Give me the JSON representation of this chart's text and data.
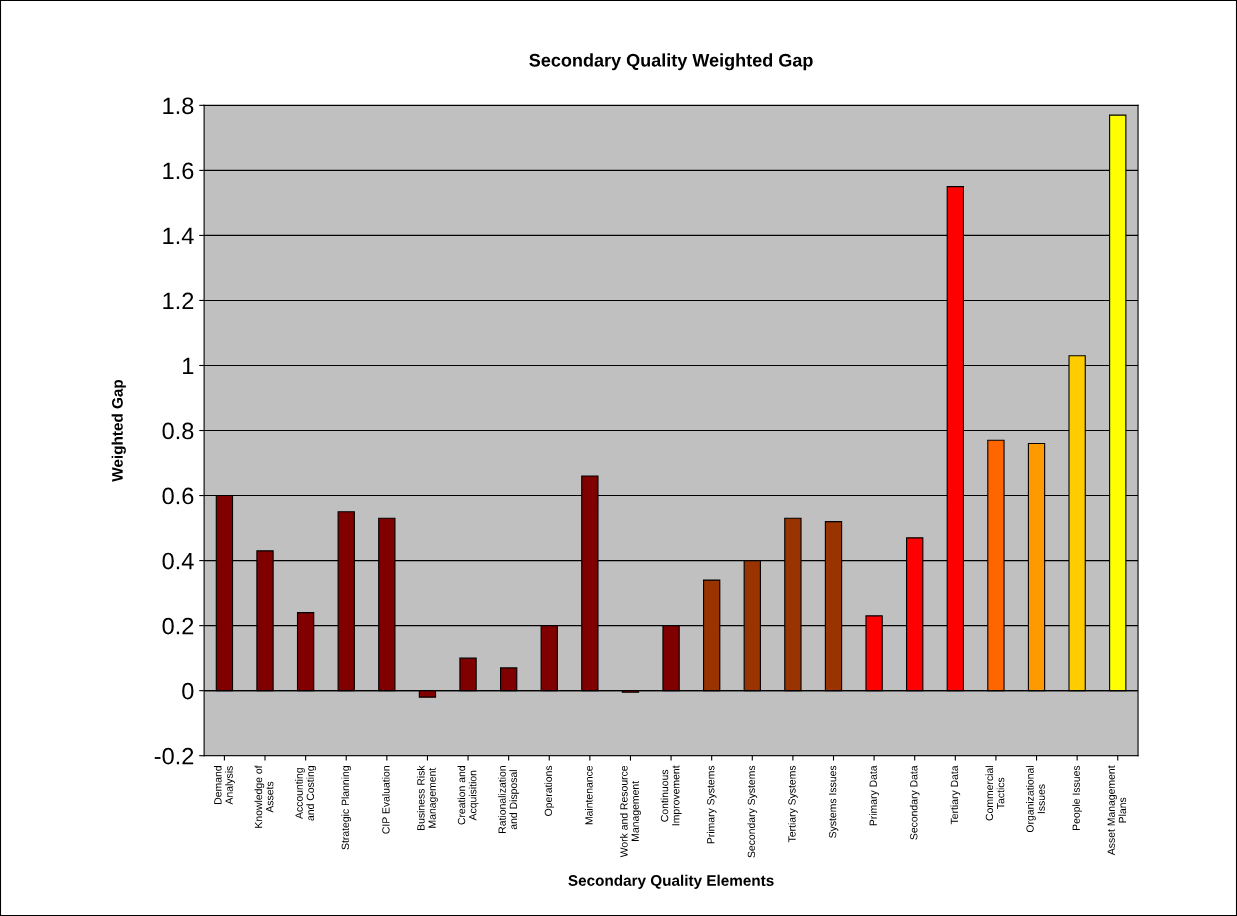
{
  "chart_data": {
    "type": "bar",
    "title": "Secondary Quality Weighted Gap",
    "xlabel": "Secondary Quality Elements",
    "ylabel": "Weighted Gap",
    "categories": [
      "Demand\nAnalysis",
      "Knowledge of\nAssets",
      "Accounting\nand Costing",
      "Strategic Planning",
      "CIP Evaluation",
      "Business Risk\nManagement",
      "Creation and\nAcquisition",
      "Rationalization\nand Disposal",
      "Operations",
      "Maintenance",
      "Work and Resource\nManagement",
      "Continuous\nImprovement",
      "Primary Systems",
      "Secondary Systems",
      "Tertiary Systems",
      "Systems Issues",
      "Primary Data",
      "Secondary Data",
      "Tertiary Data",
      "Commercial\nTactics",
      "Organizational\nIssues",
      "People Issues",
      "Asset Management\nPlans"
    ],
    "values": [
      0.6,
      0.43,
      0.24,
      0.55,
      0.53,
      -0.02,
      0.1,
      0.07,
      0.2,
      0.66,
      -0.005,
      0.2,
      0.34,
      0.4,
      0.53,
      0.52,
      0.23,
      0.47,
      1.55,
      0.77,
      0.76,
      1.03,
      1.77
    ],
    "colors": [
      "#800000",
      "#800000",
      "#800000",
      "#800000",
      "#800000",
      "#800000",
      "#800000",
      "#800000",
      "#800000",
      "#800000",
      "#800000",
      "#800000",
      "#993300",
      "#993300",
      "#993300",
      "#993300",
      "#ff0000",
      "#ff0000",
      "#ff0000",
      "#ff6600",
      "#ff9900",
      "#ffcc00",
      "#ffff00"
    ],
    "ylim": [
      -0.2,
      1.8
    ],
    "yticks": [
      -0.2,
      0,
      0.2,
      0.4,
      0.6,
      0.8,
      1,
      1.2,
      1.4,
      1.6,
      1.8
    ],
    "grid": "y",
    "legend": false
  }
}
